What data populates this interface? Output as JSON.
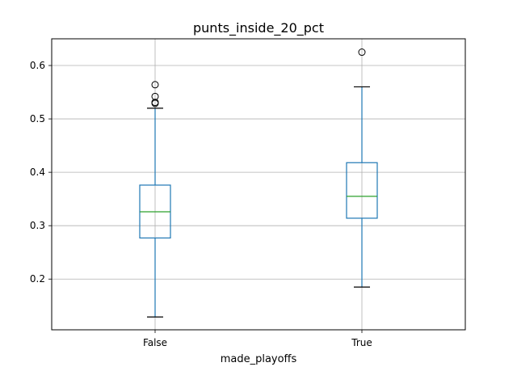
{
  "chart_data": {
    "type": "box",
    "title": "punts_inside_20_pct",
    "xlabel": "made_playoffs",
    "ylabel": "",
    "categories": [
      "False",
      "True"
    ],
    "ylim": [
      0.105,
      0.65
    ],
    "yticks": [
      0.2,
      0.3,
      0.4,
      0.5,
      0.6
    ],
    "ytick_labels": [
      "0.2",
      "0.3",
      "0.4",
      "0.5",
      "0.6"
    ],
    "grid": true,
    "boxes": [
      {
        "category": "False",
        "whisker_low": 0.129,
        "q1": 0.277,
        "median": 0.326,
        "q3": 0.376,
        "whisker_high": 0.52,
        "outliers": [
          0.529,
          0.531,
          0.542,
          0.564
        ]
      },
      {
        "category": "True",
        "whisker_low": 0.185,
        "q1": 0.314,
        "median": 0.355,
        "q3": 0.418,
        "whisker_high": 0.56,
        "outliers": [
          0.625
        ]
      }
    ],
    "colors": {
      "box": "#1f77b4",
      "median": "#2ca02c",
      "whisker_cap": "#000000",
      "grid": "#b0b0b0"
    }
  }
}
